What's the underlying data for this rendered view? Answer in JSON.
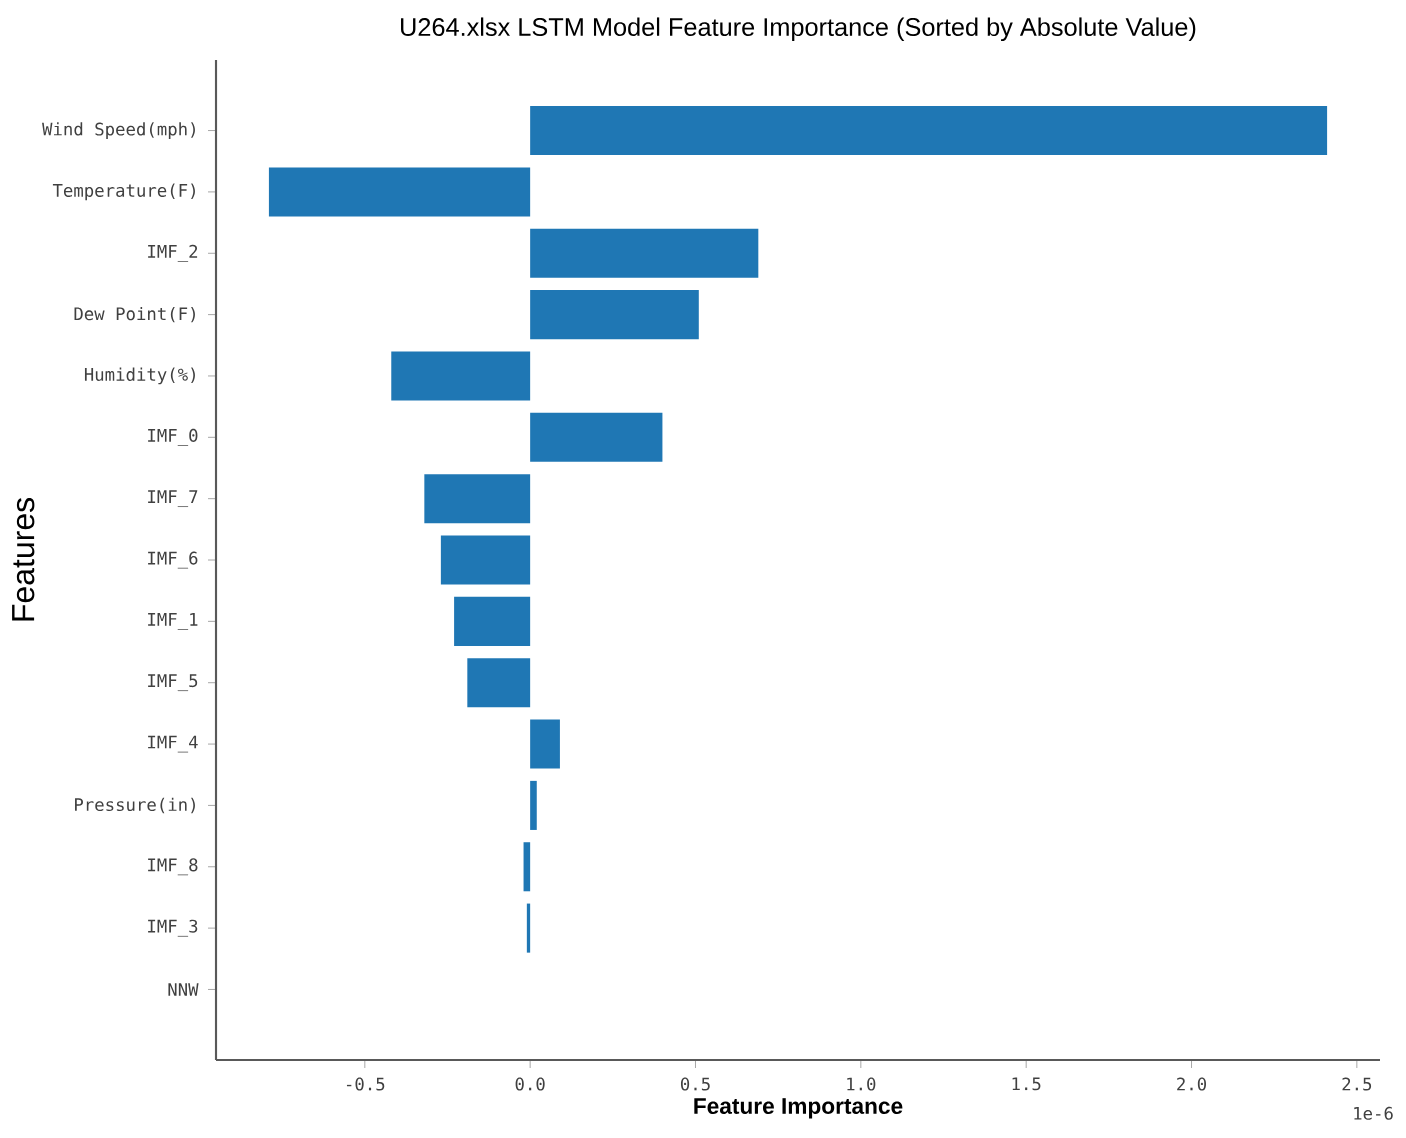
{
  "chart_data": {
    "type": "bar",
    "orientation": "horizontal",
    "title": "U264.xlsx LSTM Model Feature Importance (Sorted by Absolute Value)",
    "xlabel": "Feature Importance",
    "ylabel": "Features",
    "categories": [
      "Wind Speed(mph)",
      "Temperature(F)",
      "IMF_2",
      "Dew Point(F)",
      "Humidity(%)",
      "IMF_0",
      "IMF_7",
      "IMF_6",
      "IMF_1",
      "IMF_5",
      "IMF_4",
      "Pressure(in)",
      "IMF_8",
      "IMF_3",
      "NNW"
    ],
    "values": [
      2.41,
      -0.79,
      0.69,
      0.51,
      -0.42,
      0.4,
      -0.32,
      -0.27,
      -0.23,
      -0.19,
      0.09,
      0.02,
      -0.02,
      -0.01,
      0
    ],
    "color": "#1f77b4",
    "xlim": [
      -0.95,
      2.57
    ],
    "xticks": [
      -0.5,
      {
        "value": 0,
        "label": "0.0"
      },
      0.5,
      {
        "value": 1,
        "label": "1.0"
      },
      1.5,
      {
        "value": 2,
        "label": "2.0"
      },
      2.5
    ],
    "annotations": [
      "1e-6"
    ],
    "grid": false
  }
}
